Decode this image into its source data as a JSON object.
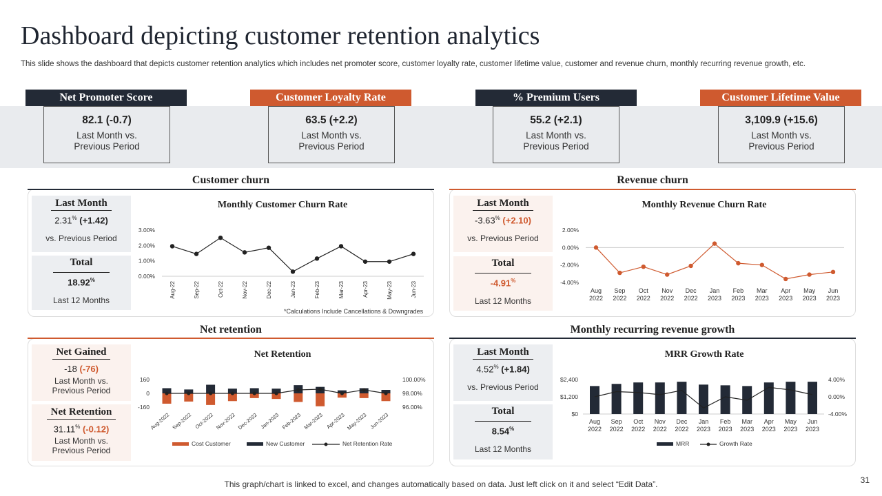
{
  "title": "Dashboard depicting customer retention analytics",
  "subtitle": "This slide shows the dashboard that depicts customer retention analytics which includes net promoter score, customer loyalty rate,  customer lifetime value, customer and revenue churn, monthly recurring revenue growth, etc.",
  "kpis": [
    {
      "label": "Net Promoter Score",
      "value": "82.1 (-0.7)",
      "l1": "Last Month vs.",
      "l2": "Previous Period"
    },
    {
      "label": "Customer Loyalty Rate",
      "value": "63.5 (+2.2)",
      "l1": "Last Month vs.",
      "l2": "Previous Period"
    },
    {
      "label": "% Premium Users",
      "value": "55.2 (+2.1)",
      "l1": "Last Month vs.",
      "l2": "Previous  Period"
    },
    {
      "label": "Customer Lifetime Value",
      "value": "3,109.9 (+15.6)",
      "l1": "Last Month vs.",
      "l2": "Previous Period"
    }
  ],
  "panels": {
    "customer_churn": {
      "title": "Customer churn",
      "last_month": {
        "head": "Last Month",
        "val": "2.31",
        "pct": "%",
        "delta": "(+1.42)",
        "text": "vs. Previous Period"
      },
      "total": {
        "head": "Total",
        "val": "18.92",
        "pct": "%",
        "text": "Last 12 Months"
      },
      "chart_title": "Monthly Customer Churn Rate",
      "note": "*Calculations Include Cancellations & Downgrades"
    },
    "revenue_churn": {
      "title": "Revenue churn",
      "last_month": {
        "head": "Last Month",
        "val": "-3.63",
        "pct": "%",
        "delta": "(+2.10)",
        "text": "vs. Previous Period"
      },
      "total": {
        "head": "Total",
        "val": "-4.91",
        "pct": "%",
        "text": "Last 12 Months"
      },
      "chart_title": "Monthly Revenue Churn Rate"
    },
    "net_retention": {
      "title": "Net retention",
      "gained": {
        "head": "Net Gained",
        "val": "-18",
        "delta": "(-76)",
        "l1": "Last Month vs.",
        "l2": "Previous Period"
      },
      "retention": {
        "head": "Net Retention",
        "val": "31.11",
        "pct": "%",
        "delta": "(-0.12)",
        "l1": "Last Month vs.",
        "l2": "Previous Period"
      },
      "chart_title": "Net Retention"
    },
    "mrr": {
      "title": "Monthly recurring revenue growth",
      "last_month": {
        "head": "Last Month",
        "val": "4.52",
        "pct": "%",
        "delta": "(+1.84)",
        "text": "vs. Previous Period"
      },
      "total": {
        "head": "Total",
        "val": "8.54",
        "pct": "%",
        "text": "Last 12 Months"
      },
      "chart_title": "MRR Growth Rate"
    }
  },
  "chart_data": [
    {
      "type": "line",
      "title": "Monthly Customer Churn Rate",
      "categories": [
        "Aug-22",
        "Sep-22",
        "Oct-22",
        "Nov-22",
        "Dec-22",
        "Jan-23",
        "Feb-23",
        "Mar-23",
        "Apr-23",
        "May-23",
        "Jun-23"
      ],
      "yticks": [
        "3.00%",
        "2.00%",
        "1.00%",
        "0.00%"
      ],
      "ylim": [
        0,
        3
      ],
      "values": [
        1.95,
        1.45,
        2.5,
        1.55,
        1.85,
        0.3,
        1.15,
        1.95,
        0.95,
        0.95,
        1.45
      ],
      "color": "#222222"
    },
    {
      "type": "line",
      "title": "Monthly Revenue Churn Rate",
      "categories": [
        [
          "Aug",
          "2022"
        ],
        [
          "Sep",
          "2022"
        ],
        [
          "Oct",
          "2022"
        ],
        [
          "Nov",
          "2022"
        ],
        [
          "Dec",
          "2022"
        ],
        [
          "Jan",
          "2023"
        ],
        [
          "Feb",
          "2023"
        ],
        [
          "Mar",
          "2023"
        ],
        [
          "Apr",
          "2023"
        ],
        [
          "May",
          "2023"
        ],
        [
          "Jun",
          "2023"
        ]
      ],
      "yticks": [
        "2.00%",
        "0.00%",
        "-2.00%",
        "-4.00%"
      ],
      "ylim": [
        -4,
        2
      ],
      "values": [
        0.0,
        -2.9,
        -2.2,
        -3.1,
        -2.1,
        0.45,
        -1.8,
        -2.0,
        -3.6,
        -3.1,
        -2.8
      ],
      "color": "#cf5a2f"
    },
    {
      "type": "bar",
      "title": "Net Retention",
      "categories": [
        "Aug-2022",
        "Sep-2022",
        "Oct-2022",
        "Nov-2022",
        "Dec-2022",
        "Jan-2023",
        "Feb-2023",
        "Mar-2023",
        "Apr-2023",
        "May-2023",
        "Jun-2023"
      ],
      "yticks_left": [
        "160",
        "0",
        "-160"
      ],
      "ylim_left": [
        -160,
        160
      ],
      "yticks_right": [
        "100.00%",
        "98.00%",
        "96.00%"
      ],
      "ylim_right": [
        96,
        100
      ],
      "series": [
        {
          "name": "Cost Customer",
          "values": [
            -120,
            -95,
            -135,
            -90,
            -55,
            -65,
            -100,
            -150,
            -50,
            -55,
            -90
          ],
          "color": "#cf5a2f"
        },
        {
          "name": "New Customer",
          "values": [
            60,
            45,
            100,
            55,
            60,
            55,
            95,
            75,
            35,
            60,
            40
          ],
          "color": "#232a36"
        },
        {
          "name": "Net Retention Rate",
          "type": "line",
          "values": [
            98.0,
            98.0,
            98.0,
            98.0,
            98.0,
            98.0,
            98.5,
            98.6,
            98.0,
            98.5,
            98.0
          ],
          "color": "#222222"
        }
      ]
    },
    {
      "type": "bar",
      "title": "MRR Growth Rate",
      "categories": [
        [
          "Aug",
          "2022"
        ],
        [
          "Sep",
          "2022"
        ],
        [
          "Oct",
          "2022"
        ],
        [
          "Nov",
          "2022"
        ],
        [
          "Dec",
          "2022"
        ],
        [
          "Jan",
          "2023"
        ],
        [
          "Feb",
          "2023"
        ],
        [
          "Mar",
          "2023"
        ],
        [
          "Apr",
          "2023"
        ],
        [
          "May",
          "2023"
        ],
        [
          "Jun",
          "2023"
        ]
      ],
      "yticks_left": [
        "$2,400",
        "$1,200",
        "$0"
      ],
      "ylim_left": [
        0,
        2400
      ],
      "yticks_right": [
        "4.00%",
        "0.00%",
        "-4.00%"
      ],
      "ylim_right": [
        -4,
        4
      ],
      "series": [
        {
          "name": "MRR",
          "values": [
            1950,
            2100,
            2200,
            2200,
            2250,
            2050,
            2000,
            1950,
            2200,
            2250,
            2250
          ],
          "color": "#232a36"
        },
        {
          "name": "Growth Rate",
          "type": "line",
          "values": [
            0.0,
            1.2,
            1.0,
            0.5,
            1.5,
            -2.6,
            0.0,
            -0.8,
            2.2,
            1.6,
            0.5
          ],
          "color": "#222222"
        }
      ]
    }
  ],
  "footer": "This graph/chart is linked to excel,  and changes automatically based on data. Just left click on it and select “Edit Data”.",
  "page_number": "31"
}
